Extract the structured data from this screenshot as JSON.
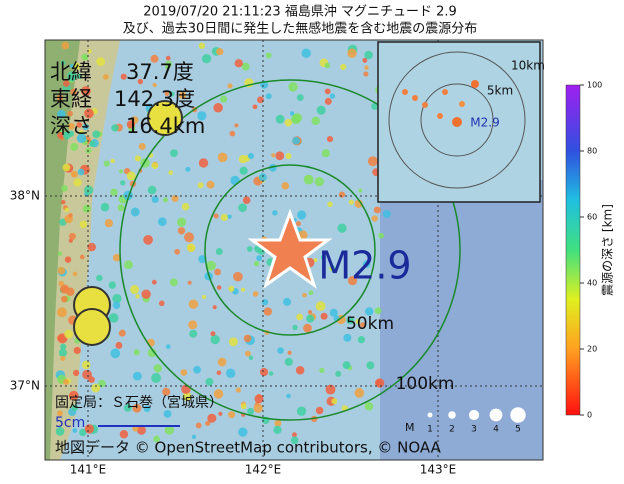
{
  "title": "2019/07/20 21:11:23  福島県沖 マグニチュード 2.9",
  "subtitle": "及び、過去30日間に発生した無感地震を含む地震の震源分布",
  "info": {
    "lat_label": "北緯",
    "lat": "37.7度",
    "lon_label": "東経",
    "lon": "142.3度",
    "depth_label": "深さ",
    "depth": "16.4km"
  },
  "map": {
    "x_labels": [
      "141°E",
      "142°E",
      "143°E"
    ],
    "y_labels": [
      "38°N",
      "37°N"
    ],
    "rings": [
      "50km",
      "100km"
    ],
    "magnitude": "M2.9"
  },
  "inset": {
    "rings": [
      "5km",
      "10km"
    ],
    "magnitude": "M2.9"
  },
  "legend": {
    "label": "M",
    "sizes": [
      "1",
      "2",
      "3",
      "4",
      "5"
    ]
  },
  "colorbar": {
    "label": "震源の深さ [km]",
    "ticks": [
      0,
      20,
      40,
      60,
      80,
      100
    ]
  },
  "station": {
    "label": "固定局：Ｓ石巻（宮城県）",
    "scale": "5cm"
  },
  "attribution": "地図データ © OpenStreetMap contributors, © NOAA"
}
